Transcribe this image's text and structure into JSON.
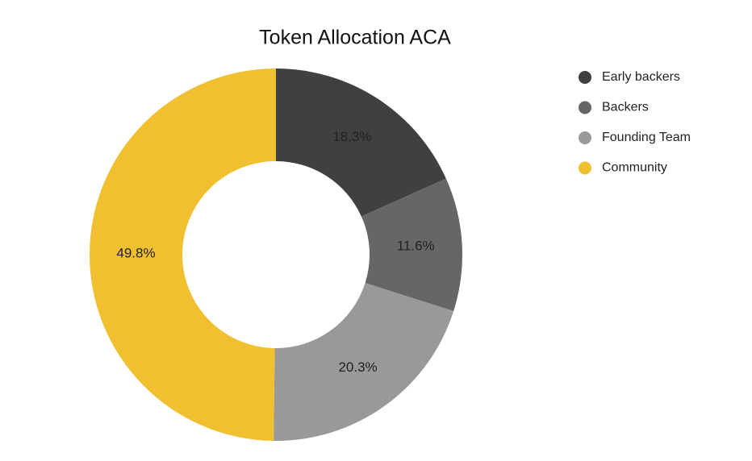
{
  "chart_data": {
    "type": "donut",
    "title": "Token Allocation ACA",
    "categories": [
      "Early backers",
      "Backers",
      "Founding Team",
      "Community"
    ],
    "values": [
      18.3,
      11.6,
      20.3,
      49.8
    ],
    "value_labels": [
      "18.3%",
      "11.6%",
      "20.3%",
      "49.8%"
    ],
    "colors": [
      "#404040",
      "#666666",
      "#999999",
      "#f0c030"
    ],
    "legend": "right"
  }
}
